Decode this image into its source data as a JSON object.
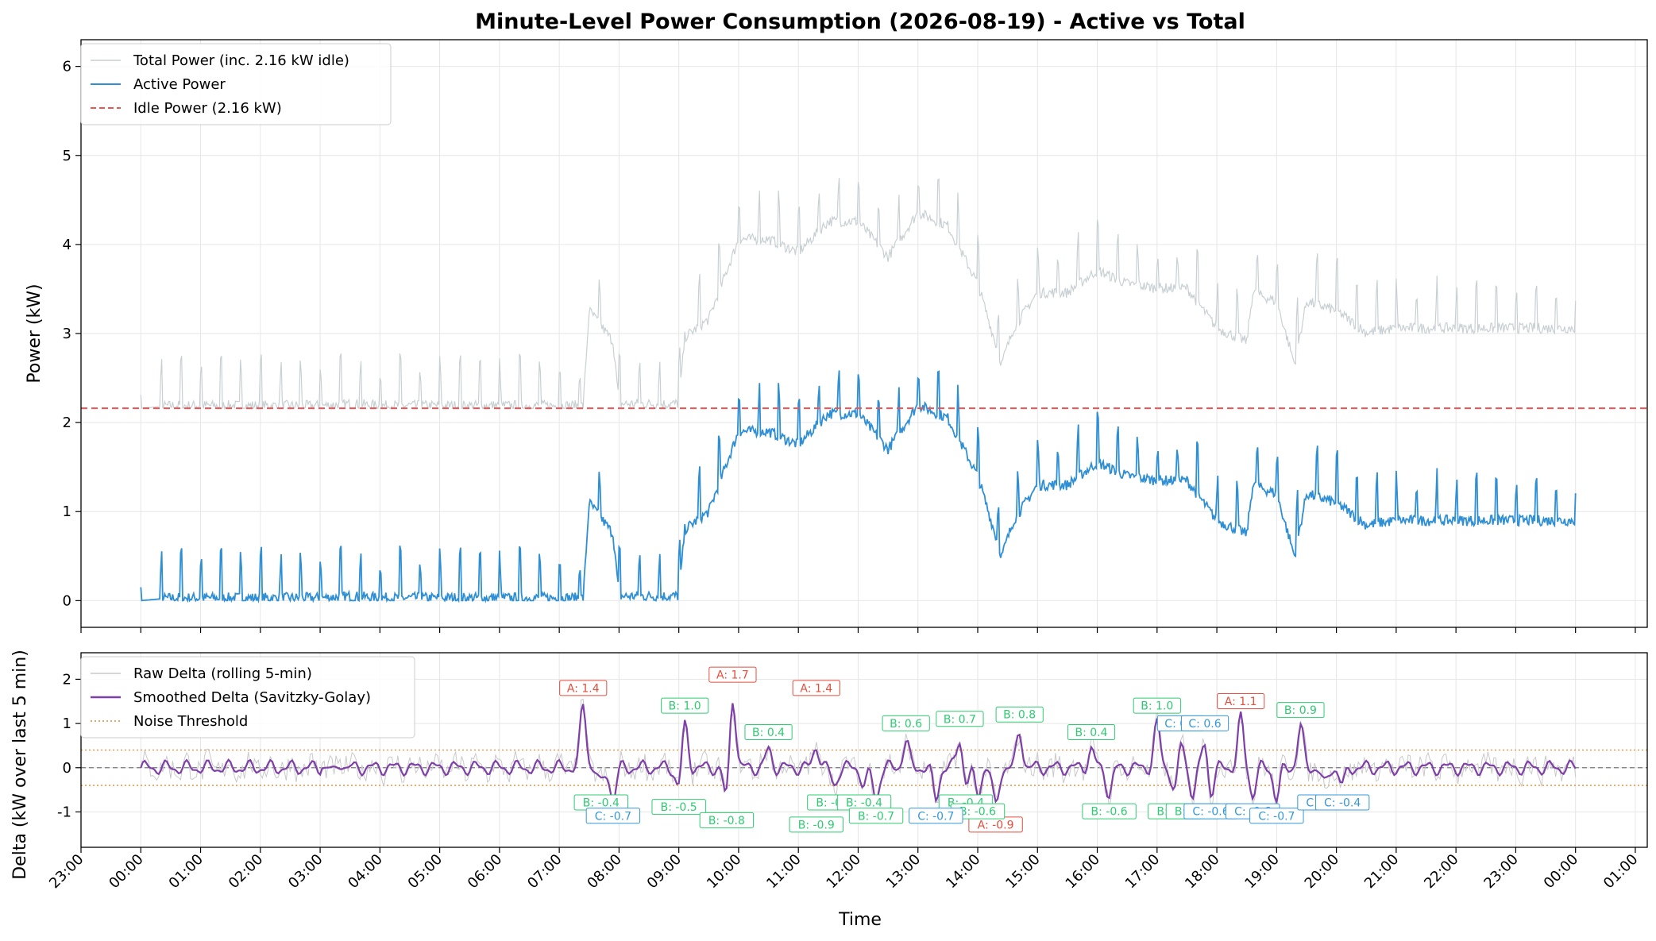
{
  "figure_title": "Minute-Level Power Consumption (2026-08-19) - Active vs Total",
  "colors": {
    "total": "#c8d0d4",
    "active": "#2f8fd4",
    "idle": "#ef5350",
    "raw_delta": "#c9c9c9",
    "smoothed": "#7e3fa8",
    "noise": "#e08a35",
    "label_A": "#e74c3c",
    "label_B": "#2ecc71",
    "label_C": "#3498db"
  },
  "chart_data": [
    {
      "type": "line",
      "title": "Minute-Level Power Consumption (2026-08-19) - Active vs Total",
      "xlabel": "",
      "ylabel": "Power (kW)",
      "ylim": [
        -0.3,
        6.3
      ],
      "yticks": [
        0,
        1,
        2,
        3,
        4,
        5,
        6
      ],
      "grid": true,
      "legend_placement": "upper-left",
      "legend": [
        "Total Power (inc. 2.16 kW idle)",
        "Active Power",
        "Idle Power (2.16 kW)"
      ],
      "idle_kw": 2.16,
      "x_hours": [
        0,
        0.5,
        1,
        1.5,
        2,
        2.5,
        3,
        3.5,
        4,
        4.5,
        5,
        5.5,
        6,
        6.5,
        7,
        7.4,
        7.5,
        7.9,
        8,
        8.5,
        9,
        9.1,
        9.5,
        10,
        10.5,
        11,
        11.5,
        12,
        12.5,
        13,
        13.5,
        14,
        14.4,
        14.6,
        15,
        15.5,
        16,
        16.5,
        17,
        17.5,
        18,
        18.5,
        18.6,
        19,
        19.3,
        19.5,
        20,
        20.5,
        21,
        21.5,
        22,
        22.5,
        23,
        23.5,
        24
      ],
      "series": [
        {
          "name": "Active Power",
          "values": [
            0,
            0.03,
            0.03,
            0.03,
            0.03,
            0.03,
            0.03,
            0.05,
            0.03,
            0.03,
            0.03,
            0.03,
            0.03,
            0.03,
            0.03,
            0.03,
            1.1,
            0.75,
            0.05,
            0.05,
            0.05,
            0.8,
            1.0,
            1.9,
            1.9,
            1.75,
            2.1,
            2.1,
            1.7,
            2.2,
            2.05,
            1.4,
            0.5,
            0.9,
            1.3,
            1.3,
            1.55,
            1.4,
            1.35,
            1.35,
            0.9,
            0.75,
            1.3,
            1.2,
            0.5,
            1.2,
            1.1,
            0.85,
            0.9,
            0.9,
            0.9,
            0.9,
            0.9,
            0.9,
            0.9
          ]
        },
        {
          "name": "Total Power (inc. 2.16 kW idle)",
          "values": [
            2.16,
            2.19,
            2.19,
            2.19,
            2.19,
            2.19,
            2.19,
            2.21,
            2.19,
            2.19,
            2.19,
            2.19,
            2.19,
            2.19,
            2.19,
            2.19,
            3.26,
            2.91,
            2.21,
            2.21,
            2.21,
            2.96,
            3.16,
            4.06,
            4.06,
            3.91,
            4.26,
            4.26,
            3.86,
            4.36,
            4.21,
            3.56,
            2.66,
            3.06,
            3.46,
            3.46,
            3.71,
            3.56,
            3.51,
            3.51,
            3.06,
            2.91,
            3.46,
            3.36,
            2.66,
            3.36,
            3.26,
            3.01,
            3.06,
            3.06,
            3.06,
            3.06,
            3.06,
            3.06,
            3.06
          ]
        }
      ]
    },
    {
      "type": "line",
      "xlabel": "Time",
      "ylabel": "Delta (kW over last 5 min)",
      "ylim": [
        -1.8,
        2.6
      ],
      "yticks": [
        -1,
        0,
        1,
        2
      ],
      "x_range_hours": [
        -1,
        25.2
      ],
      "xtick_labels": [
        "23:00",
        "00:00",
        "01:00",
        "02:00",
        "03:00",
        "04:00",
        "05:00",
        "06:00",
        "07:00",
        "08:00",
        "09:00",
        "10:00",
        "11:00",
        "12:00",
        "13:00",
        "14:00",
        "15:00",
        "16:00",
        "17:00",
        "18:00",
        "19:00",
        "20:00",
        "21:00",
        "22:00",
        "23:00",
        "00:00",
        "01:00"
      ],
      "grid": true,
      "legend_placement": "upper-left",
      "legend": [
        "Raw Delta (rolling 5-min)",
        "Smoothed Delta (Savitzky-Golay)",
        "Noise Threshold"
      ],
      "noise_threshold": 0.4,
      "annotations": [
        {
          "x": 7.4,
          "y": 1.4,
          "label": "A: 1.4",
          "kind": "A"
        },
        {
          "x": 9.9,
          "y": 1.7,
          "label": "A: 1.7",
          "kind": "A"
        },
        {
          "x": 11.3,
          "y": 1.4,
          "label": "A: 1.4",
          "kind": "A"
        },
        {
          "x": 18.4,
          "y": 1.1,
          "label": "A: 1.1",
          "kind": "A"
        },
        {
          "x": 14.3,
          "y": -0.9,
          "label": "A: -0.9",
          "kind": "A"
        },
        {
          "x": 9.1,
          "y": 1.0,
          "label": "B: 1.0",
          "kind": "B"
        },
        {
          "x": 10.5,
          "y": 0.4,
          "label": "B: 0.4",
          "kind": "B"
        },
        {
          "x": 12.8,
          "y": 0.6,
          "label": "B: 0.6",
          "kind": "B"
        },
        {
          "x": 13.7,
          "y": 0.7,
          "label": "B: 0.7",
          "kind": "B"
        },
        {
          "x": 14.7,
          "y": 0.8,
          "label": "B: 0.8",
          "kind": "B"
        },
        {
          "x": 15.9,
          "y": 0.4,
          "label": "B: 0.4",
          "kind": "B"
        },
        {
          "x": 17.0,
          "y": 1.0,
          "label": "B: 1.0",
          "kind": "B"
        },
        {
          "x": 19.4,
          "y": 0.9,
          "label": "B: 0.9",
          "kind": "B"
        },
        {
          "x": 7.7,
          "y": -0.4,
          "label": "B: -0.4",
          "kind": "B"
        },
        {
          "x": 9.0,
          "y": -0.5,
          "label": "B: -0.5",
          "kind": "B"
        },
        {
          "x": 9.8,
          "y": -0.8,
          "label": "B: -0.8",
          "kind": "B"
        },
        {
          "x": 11.3,
          "y": -0.9,
          "label": "B: -0.9",
          "kind": "B"
        },
        {
          "x": 11.6,
          "y": -0.4,
          "label": "B: -0.4",
          "kind": "B"
        },
        {
          "x": 12.1,
          "y": -0.4,
          "label": "B: -0.4",
          "kind": "B"
        },
        {
          "x": 12.3,
          "y": -0.7,
          "label": "B: -0.7",
          "kind": "B"
        },
        {
          "x": 13.8,
          "y": -0.4,
          "label": "B: -0.4",
          "kind": "B"
        },
        {
          "x": 14.0,
          "y": -0.6,
          "label": "B: -0.6",
          "kind": "B"
        },
        {
          "x": 16.2,
          "y": -0.6,
          "label": "B: -0.6",
          "kind": "B"
        },
        {
          "x": 17.3,
          "y": -0.6,
          "label": "B: -0.6",
          "kind": "B"
        },
        {
          "x": 17.6,
          "y": -0.6,
          "label": "B: -0.6",
          "kind": "B"
        },
        {
          "x": 7.9,
          "y": -0.7,
          "label": "C: -0.7",
          "kind": "C"
        },
        {
          "x": 13.3,
          "y": -0.7,
          "label": "C: -0.7",
          "kind": "C"
        },
        {
          "x": 17.4,
          "y": 0.6,
          "label": "C: 0.6",
          "kind": "C"
        },
        {
          "x": 17.8,
          "y": 0.6,
          "label": "C: 0.6",
          "kind": "C"
        },
        {
          "x": 17.9,
          "y": -0.6,
          "label": "C: -0.6",
          "kind": "C"
        },
        {
          "x": 18.6,
          "y": -0.6,
          "label": "C: -0.6",
          "kind": "C"
        },
        {
          "x": 19.0,
          "y": -0.7,
          "label": "C: -0.7",
          "kind": "C"
        },
        {
          "x": 19.8,
          "y": -0.4,
          "label": "C: -0.4",
          "kind": "C"
        },
        {
          "x": 20.1,
          "y": -0.4,
          "label": "C: -0.4",
          "kind": "C"
        }
      ]
    }
  ]
}
